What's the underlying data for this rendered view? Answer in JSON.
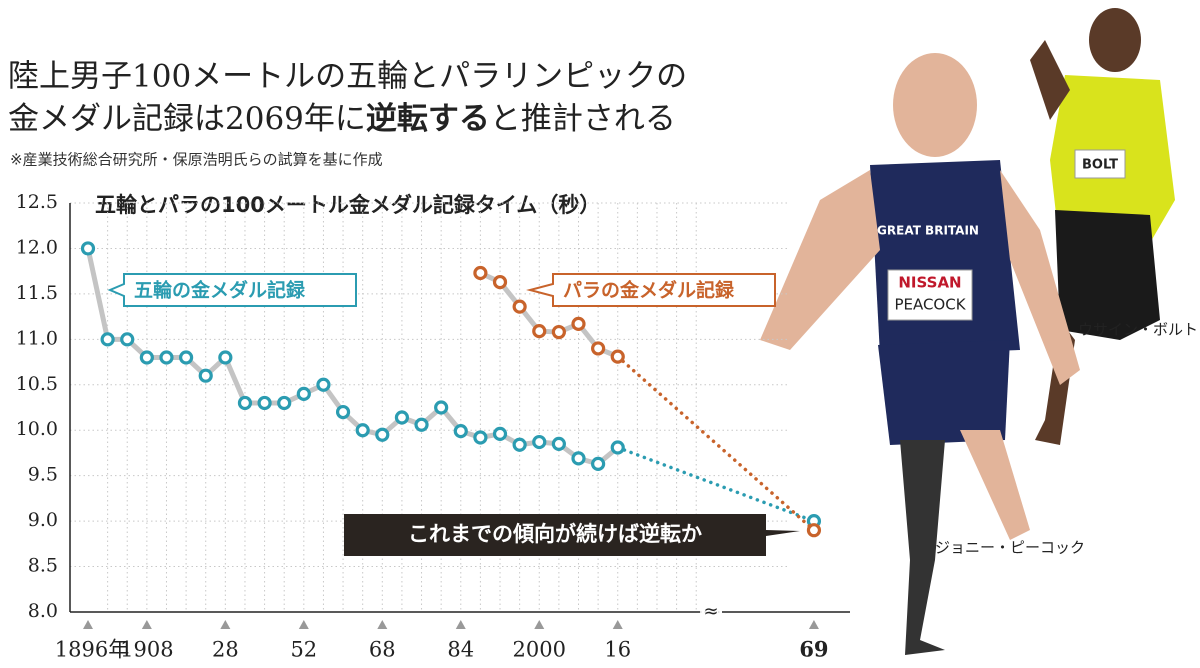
{
  "title_lines": [
    "陸上男子100メートルの五輪とパラリンピックの",
    [
      "金メダル記録は2069年に",
      "逆転する",
      "と推計される"
    ]
  ],
  "note": "※産業技術総合研究所・保原浩明氏らの試算を基に作成",
  "photos": [
    {
      "caption": "ウサイン・ボルト",
      "bib": "BOLT"
    },
    {
      "caption": "ジョニー・ピーコック",
      "bib": "PEACOCK",
      "shirt": "GREAT BRITAIN",
      "sponsor": "NISSAN"
    }
  ],
  "chart_data": {
    "type": "line",
    "title": "五輪とパラの100メートル金メダル記録タイム（秒）",
    "categories": [
      "1896年",
      null,
      null,
      "1908",
      null,
      null,
      null,
      "28",
      null,
      null,
      null,
      "52",
      null,
      null,
      null,
      "68",
      null,
      null,
      null,
      "84",
      null,
      null,
      null,
      "2000",
      null,
      null,
      null,
      "16",
      null,
      null,
      null,
      null,
      null,
      null,
      null,
      null,
      null,
      "69"
    ],
    "series": [
      {
        "name": "五輪の金メダル記録",
        "color": "#2b9cb1",
        "values": [
          12.0,
          11.0,
          11.0,
          10.8,
          10.8,
          10.8,
          10.6,
          10.8,
          10.3,
          10.3,
          10.3,
          10.4,
          10.5,
          10.2,
          10.0,
          9.95,
          10.14,
          10.06,
          10.25,
          9.99,
          9.92,
          9.96,
          9.84,
          9.87,
          9.85,
          9.69,
          9.63,
          9.81,
          null,
          null,
          null,
          null,
          null,
          null,
          null,
          null,
          null,
          9.0
        ]
      },
      {
        "name": "パラの金メダル記録",
        "color": "#c8632b",
        "values": [
          null,
          null,
          null,
          null,
          null,
          null,
          null,
          null,
          null,
          null,
          null,
          null,
          null,
          null,
          null,
          null,
          null,
          null,
          null,
          null,
          11.73,
          11.63,
          11.36,
          11.09,
          11.08,
          11.17,
          10.9,
          10.81,
          null,
          null,
          null,
          null,
          null,
          null,
          null,
          null,
          null,
          8.9
        ]
      }
    ],
    "annotation": "これまでの傾向が続けば逆転か",
    "ylim": [
      8.0,
      12.5
    ],
    "yticks": [
      {
        "value": 8.0,
        "label": "8.0"
      },
      8.5,
      {
        "value": 9.0,
        "label": "9.0"
      },
      9.5,
      {
        "value": 10.0,
        "label": "10.0"
      },
      10.5,
      {
        "value": 11.0,
        "label": "11.0"
      },
      11.5,
      {
        "value": 12.0,
        "label": "12.0"
      },
      12.5
    ],
    "grid": true
  }
}
